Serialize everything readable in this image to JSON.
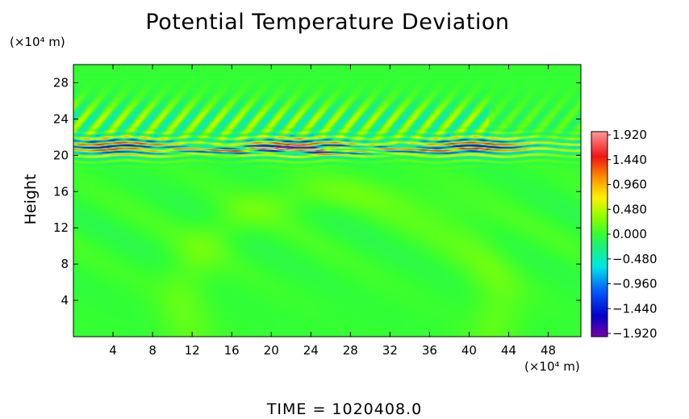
{
  "chart_data": {
    "type": "heatmap",
    "title": "Potential Temperature Deviation",
    "ylabel": "Height",
    "xlabel": "",
    "y_unit": "(×10⁴ m)",
    "x_unit": "(×10⁴ m)",
    "xlim": [
      0,
      51.3
    ],
    "ylim": [
      0,
      30
    ],
    "x_ticks": [
      "4",
      "8",
      "12",
      "16",
      "20",
      "24",
      "28",
      "32",
      "36",
      "40",
      "44",
      "48"
    ],
    "x_tick_values": [
      4,
      8,
      12,
      16,
      20,
      24,
      28,
      32,
      36,
      40,
      44,
      48
    ],
    "y_ticks": [
      "4",
      "8",
      "12",
      "16",
      "20",
      "24",
      "28"
    ],
    "y_tick_values": [
      4,
      8,
      12,
      16,
      20,
      24,
      28
    ],
    "colorbar": {
      "labels": [
        "1.920",
        "1.440",
        "0.960",
        "0.480",
        "0.000",
        "−0.480",
        "−0.960",
        "−1.440",
        "−1.920"
      ],
      "values": [
        1.92,
        1.44,
        0.96,
        0.48,
        0.0,
        -0.48,
        -0.96,
        -1.44,
        -1.92
      ],
      "range": [
        -1.92,
        1.92
      ]
    },
    "background_value": 0.0,
    "features": [
      {
        "name": "oscillation band",
        "y_range": [
          19.5,
          22.5
        ],
        "x_range": [
          0,
          51.3
        ],
        "amplitude": 1.92
      },
      {
        "name": "strong core",
        "y_range": [
          20.0,
          21.2
        ],
        "x_range": [
          8,
          38
        ],
        "amplitude": 1.92
      },
      {
        "name": "upper wave field",
        "y_range": [
          22.5,
          28
        ],
        "x_range": [
          0,
          40
        ],
        "amplitude": 0.6
      },
      {
        "name": "lower dome",
        "y_range": [
          4,
          18
        ],
        "x_range": [
          10,
          44
        ],
        "amplitude": 0.25
      }
    ]
  },
  "footer": "TIME  =  1020408.0",
  "colors": {
    "background_field": "#33ff33",
    "frame": "#000000"
  }
}
